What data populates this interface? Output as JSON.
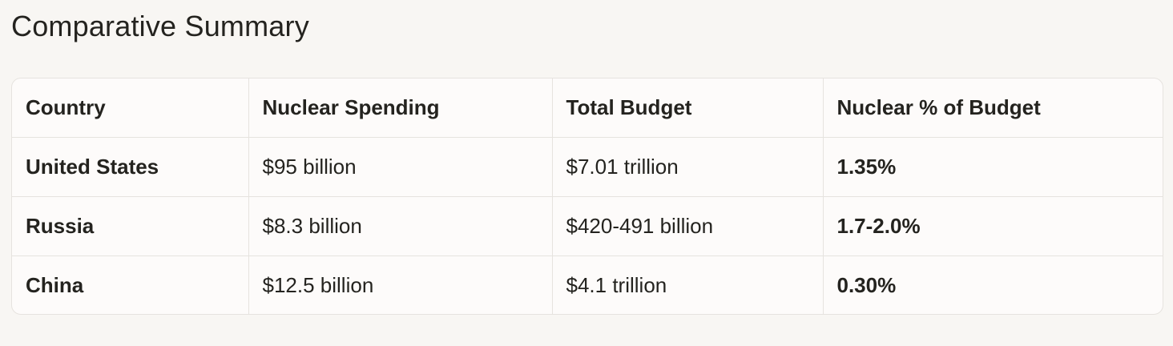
{
  "title": "Comparative Summary",
  "table": {
    "headers": [
      "Country",
      "Nuclear Spending",
      "Total Budget",
      "Nuclear % of Budget"
    ],
    "rows": [
      [
        "United States",
        "$95 billion",
        "$7.01 trillion",
        "1.35%"
      ],
      [
        "Russia",
        "$8.3 billion",
        "$420-491 billion",
        "1.7-2.0%"
      ],
      [
        "China",
        "$12.5 billion",
        "$4.1 trillion",
        "0.30%"
      ]
    ]
  }
}
